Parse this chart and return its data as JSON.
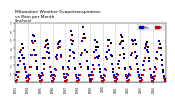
{
  "title": "Milwaukee Weather Evapotranspiration\nvs Rain per Month\n(Inches)",
  "title_fontsize": 3.2,
  "background_color": "#ffffff",
  "legend_labels": [
    "Rain",
    "ET"
  ],
  "legend_colors": [
    "#0000cc",
    "#cc0000"
  ],
  "years": [
    1993,
    1994,
    1995,
    1996,
    1997,
    1998,
    1999,
    2000,
    2001,
    2002,
    2003,
    2004
  ],
  "months_per_year": 12,
  "rain": [
    0.8,
    1.2,
    2.0,
    2.8,
    3.5,
    3.8,
    3.2,
    2.8,
    2.2,
    1.8,
    1.2,
    0.7,
    0.6,
    0.9,
    1.8,
    3.2,
    4.8,
    5.5,
    3.8,
    3.2,
    2.5,
    1.5,
    0.9,
    0.5,
    0.7,
    1.1,
    2.8,
    2.2,
    4.2,
    4.8,
    3.5,
    4.0,
    2.8,
    1.8,
    1.2,
    0.8,
    0.5,
    0.8,
    1.5,
    3.0,
    3.2,
    4.5,
    4.2,
    4.8,
    3.2,
    1.8,
    1.0,
    0.5,
    0.6,
    1.0,
    1.8,
    2.5,
    3.8,
    6.0,
    4.5,
    3.5,
    2.8,
    1.5,
    0.9,
    0.5,
    0.5,
    0.8,
    2.2,
    3.2,
    4.8,
    6.5,
    5.2,
    3.8,
    2.5,
    1.5,
    0.8,
    0.4,
    0.8,
    1.2,
    2.0,
    3.5,
    5.0,
    3.8,
    3.0,
    2.8,
    2.0,
    1.2,
    0.7,
    0.5,
    0.5,
    0.8,
    1.5,
    3.0,
    3.5,
    5.0,
    3.8,
    3.2,
    2.2,
    1.2,
    0.8,
    0.5,
    0.6,
    1.0,
    2.2,
    2.5,
    4.5,
    5.5,
    4.8,
    4.0,
    2.8,
    1.5,
    0.9,
    0.5,
    0.7,
    1.0,
    1.8,
    3.2,
    5.0,
    4.8,
    3.5,
    2.8,
    2.2,
    1.2,
    0.8,
    0.5,
    0.5,
    0.9,
    2.0,
    2.5,
    4.0,
    4.5,
    3.8,
    3.5,
    2.5,
    1.5,
    0.8,
    0.5,
    0.6,
    1.2,
    1.8,
    2.8,
    3.5,
    4.8,
    4.0,
    3.2,
    2.0,
    1.2,
    0.7,
    0.4
  ],
  "et": [
    0.1,
    0.3,
    0.6,
    1.2,
    2.5,
    3.8,
    4.5,
    4.0,
    2.8,
    1.5,
    0.5,
    0.1,
    0.2,
    0.4,
    0.9,
    1.8,
    3.2,
    4.6,
    5.4,
    4.8,
    3.2,
    1.8,
    0.7,
    0.2,
    0.1,
    0.3,
    0.8,
    1.5,
    2.9,
    4.4,
    5.0,
    4.5,
    3.4,
    1.8,
    0.7,
    0.2,
    0.2,
    0.4,
    0.7,
    1.4,
    2.7,
    4.0,
    4.7,
    4.2,
    3.0,
    1.6,
    0.6,
    0.2,
    0.1,
    0.3,
    0.8,
    1.5,
    3.1,
    5.0,
    5.5,
    4.9,
    3.4,
    1.7,
    0.7,
    0.2,
    0.1,
    0.3,
    0.9,
    1.8,
    3.4,
    5.2,
    5.7,
    5.2,
    3.5,
    1.8,
    0.7,
    0.2,
    0.2,
    0.4,
    0.8,
    1.6,
    2.9,
    4.1,
    4.7,
    4.2,
    3.1,
    1.5,
    0.6,
    0.2,
    0.1,
    0.3,
    0.7,
    1.4,
    2.7,
    4.3,
    5.0,
    4.6,
    3.1,
    1.6,
    0.6,
    0.2,
    0.2,
    0.4,
    0.9,
    1.7,
    3.2,
    4.7,
    5.3,
    4.9,
    3.3,
    1.7,
    0.7,
    0.2,
    0.1,
    0.3,
    0.8,
    1.6,
    3.4,
    4.5,
    5.0,
    4.5,
    3.1,
    1.5,
    0.6,
    0.2,
    0.1,
    0.3,
    0.8,
    1.4,
    2.9,
    4.3,
    4.7,
    4.2,
    2.8,
    1.5,
    0.6,
    0.2,
    0.1,
    0.4,
    0.7,
    1.6,
    2.7,
    4.0,
    4.5,
    4.0,
    2.6,
    1.4,
    0.5,
    0.1
  ],
  "ylim": [
    0,
    7
  ],
  "yticks": [
    1,
    2,
    3,
    4,
    5,
    6,
    7
  ],
  "ytick_labels": [
    "1",
    "2",
    "3",
    "4",
    "5",
    "6",
    "7"
  ],
  "grid_color": "#bbbbbb",
  "rain_color": "#0000cc",
  "et_color": "#cc0000",
  "black_color": "#000000",
  "dot_size": 1.8
}
